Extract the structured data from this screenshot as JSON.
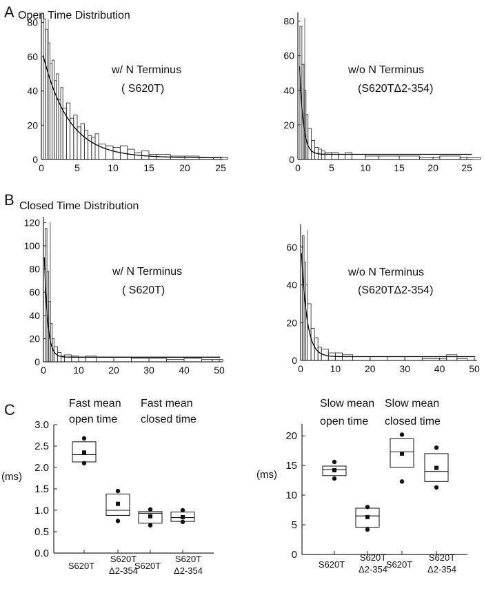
{
  "panel_labels": [
    "A",
    "B",
    "C"
  ],
  "section_titles": {
    "open": "Open Time Distribution",
    "closed": "Closed Time Distribution"
  },
  "chart_data": [
    {
      "id": "a_left",
      "type": "bar",
      "section": "A",
      "title": "Open Time Distribution",
      "legend": [
        "w/  N Terminus",
        "( S620T)"
      ],
      "xlim": [
        0,
        25
      ],
      "ylim": [
        0,
        85
      ],
      "xticks": [
        0,
        5,
        10,
        15,
        20,
        25
      ],
      "yticks": [
        0,
        20,
        40,
        60,
        80
      ],
      "fit": {
        "A": 64,
        "tau": 3.6,
        "C": 1
      },
      "x": [
        0.3,
        0.6,
        0.9,
        1.2,
        1.5,
        1.8,
        2.1,
        2.4,
        2.7,
        3.0,
        3.5,
        4.0,
        4.5,
        5.0,
        5.5,
        6.0,
        6.5,
        7.0,
        7.5,
        8.0,
        9.0,
        10.0,
        11.0,
        12.0,
        13.0,
        14.0,
        15.0,
        16.0,
        18.0,
        20.0,
        22.0,
        24.0
      ],
      "values": [
        82,
        76,
        68,
        56,
        58,
        46,
        50,
        35,
        42,
        30,
        33,
        24,
        26,
        19,
        21,
        17,
        14,
        13,
        15,
        9,
        8,
        7,
        8,
        6,
        4,
        5,
        3,
        3,
        2,
        2,
        1,
        1
      ]
    },
    {
      "id": "a_right",
      "type": "bar",
      "section": "A",
      "title": "",
      "legend": [
        "w/o  N Terminus",
        "(S620TΔ2-354)"
      ],
      "xlim": [
        0,
        25.5
      ],
      "ylim": [
        0,
        85
      ],
      "xticks": [
        0,
        5,
        10,
        15,
        20,
        25
      ],
      "yticks": [
        0,
        20,
        40,
        60,
        80
      ],
      "fit": {
        "A": 80,
        "tau": 0.55,
        "C": 3
      },
      "x": [
        0.3,
        0.6,
        0.9,
        1.2,
        1.5,
        2.0,
        2.5,
        3.0,
        3.5,
        4.0,
        5.0,
        6.0,
        7.0,
        8.0,
        10.0,
        12.0,
        15.0,
        18.0,
        21.0,
        24.0
      ],
      "values": [
        77,
        55,
        40,
        26,
        18,
        11,
        7,
        6,
        5,
        4,
        4,
        3,
        4,
        3,
        2,
        2,
        2,
        1,
        2,
        1
      ]
    },
    {
      "id": "b_left",
      "type": "bar",
      "section": "B",
      "title": "Closed Time Distribution",
      "legend": [
        "w/  N Terminus",
        "( S620T)"
      ],
      "xlim": [
        0,
        50
      ],
      "ylim": [
        0,
        125
      ],
      "xticks": [
        0,
        10,
        20,
        30,
        40,
        50
      ],
      "yticks": [
        0,
        20,
        40,
        60,
        80,
        100,
        120
      ],
      "fit": {
        "A": 112,
        "tau": 0.95,
        "C": 4
      },
      "x": [
        0.5,
        1.0,
        1.5,
        2.0,
        2.5,
        3.0,
        4.0,
        5.0,
        6.0,
        8.0,
        10.0,
        12.0,
        15.0,
        20.0,
        25.0,
        30.0,
        35.0,
        40.0,
        45.0,
        48.0
      ],
      "values": [
        115,
        78,
        52,
        33,
        20,
        13,
        8,
        5,
        6,
        5,
        4,
        5,
        4,
        4,
        3,
        3,
        2,
        3,
        2,
        2
      ]
    },
    {
      "id": "b_right",
      "type": "bar",
      "section": "B",
      "title": "",
      "legend": [
        "w/o  N Terminus",
        "(S620TΔ2-354)"
      ],
      "xlim": [
        0,
        50
      ],
      "ylim": [
        0,
        72
      ],
      "xticks": [
        0,
        10,
        20,
        30,
        40,
        50
      ],
      "yticks": [
        0,
        20,
        40,
        60
      ],
      "fit": {
        "A": 64,
        "tau": 1.6,
        "C": 2
      },
      "x": [
        0.5,
        1.0,
        1.5,
        2.0,
        3.0,
        4.0,
        5.0,
        6.0,
        8.0,
        10.0,
        12.0,
        15.0,
        20.0,
        25.0,
        30.0,
        35.0,
        40.0,
        42.0,
        45.0
      ],
      "values": [
        66,
        52,
        40,
        30,
        17,
        12,
        7,
        6,
        4,
        4,
        3,
        2,
        2,
        2,
        2,
        1,
        1,
        3,
        1
      ]
    },
    {
      "id": "c_left",
      "type": "box",
      "section": "C",
      "ylabel": "(ms)",
      "ylim": [
        0,
        3.0
      ],
      "yticks": [
        "0.0",
        "0.5",
        "1.0",
        "1.5",
        "2.0",
        "2.5",
        "3.0"
      ],
      "headers": [
        [
          "Fast mean",
          "open time"
        ],
        [
          "Fast mean",
          "closed time"
        ]
      ],
      "categories": [
        "S620T",
        "S620T Δ2-354",
        "S620T",
        "S620T Δ2-354"
      ],
      "boxes": [
        {
          "q1": 2.13,
          "median": 2.3,
          "q3": 2.6,
          "mean": 2.35,
          "min": 2.1,
          "max": 2.68
        },
        {
          "q1": 0.88,
          "median": 1.0,
          "q3": 1.38,
          "mean": 1.15,
          "min": 0.75,
          "max": 1.45
        },
        {
          "q1": 0.7,
          "median": 0.93,
          "q3": 0.97,
          "mean": 0.86,
          "min": 0.65,
          "max": 1.02
        },
        {
          "q1": 0.74,
          "median": 0.83,
          "q3": 0.96,
          "mean": 0.84,
          "min": 0.73,
          "max": 1.0
        }
      ]
    },
    {
      "id": "c_right",
      "type": "box",
      "section": "C",
      "ylabel": "(ms)",
      "ylim": [
        0,
        22
      ],
      "yticks": [
        "0",
        "5",
        "10",
        "15",
        "20"
      ],
      "headers": [
        [
          "Slow mean",
          "open time"
        ],
        [
          "Slow mean",
          "closed time"
        ]
      ],
      "categories": [
        "S620T",
        "S620T Δ2-354",
        "S620T",
        "S620T Δ2-354"
      ],
      "boxes": [
        {
          "q1": 13.3,
          "median": 14.3,
          "q3": 14.9,
          "mean": 14.2,
          "min": 12.8,
          "max": 15.6
        },
        {
          "q1": 4.6,
          "median": 6.5,
          "q3": 7.8,
          "mean": 6.3,
          "min": 4.2,
          "max": 8.0
        },
        {
          "q1": 14.7,
          "median": 17.3,
          "q3": 19.5,
          "mean": 17.0,
          "min": 12.3,
          "max": 20.2
        },
        {
          "q1": 12.3,
          "median": 14.0,
          "q3": 17.0,
          "mean": 14.6,
          "min": 11.3,
          "max": 18.0
        }
      ]
    }
  ]
}
